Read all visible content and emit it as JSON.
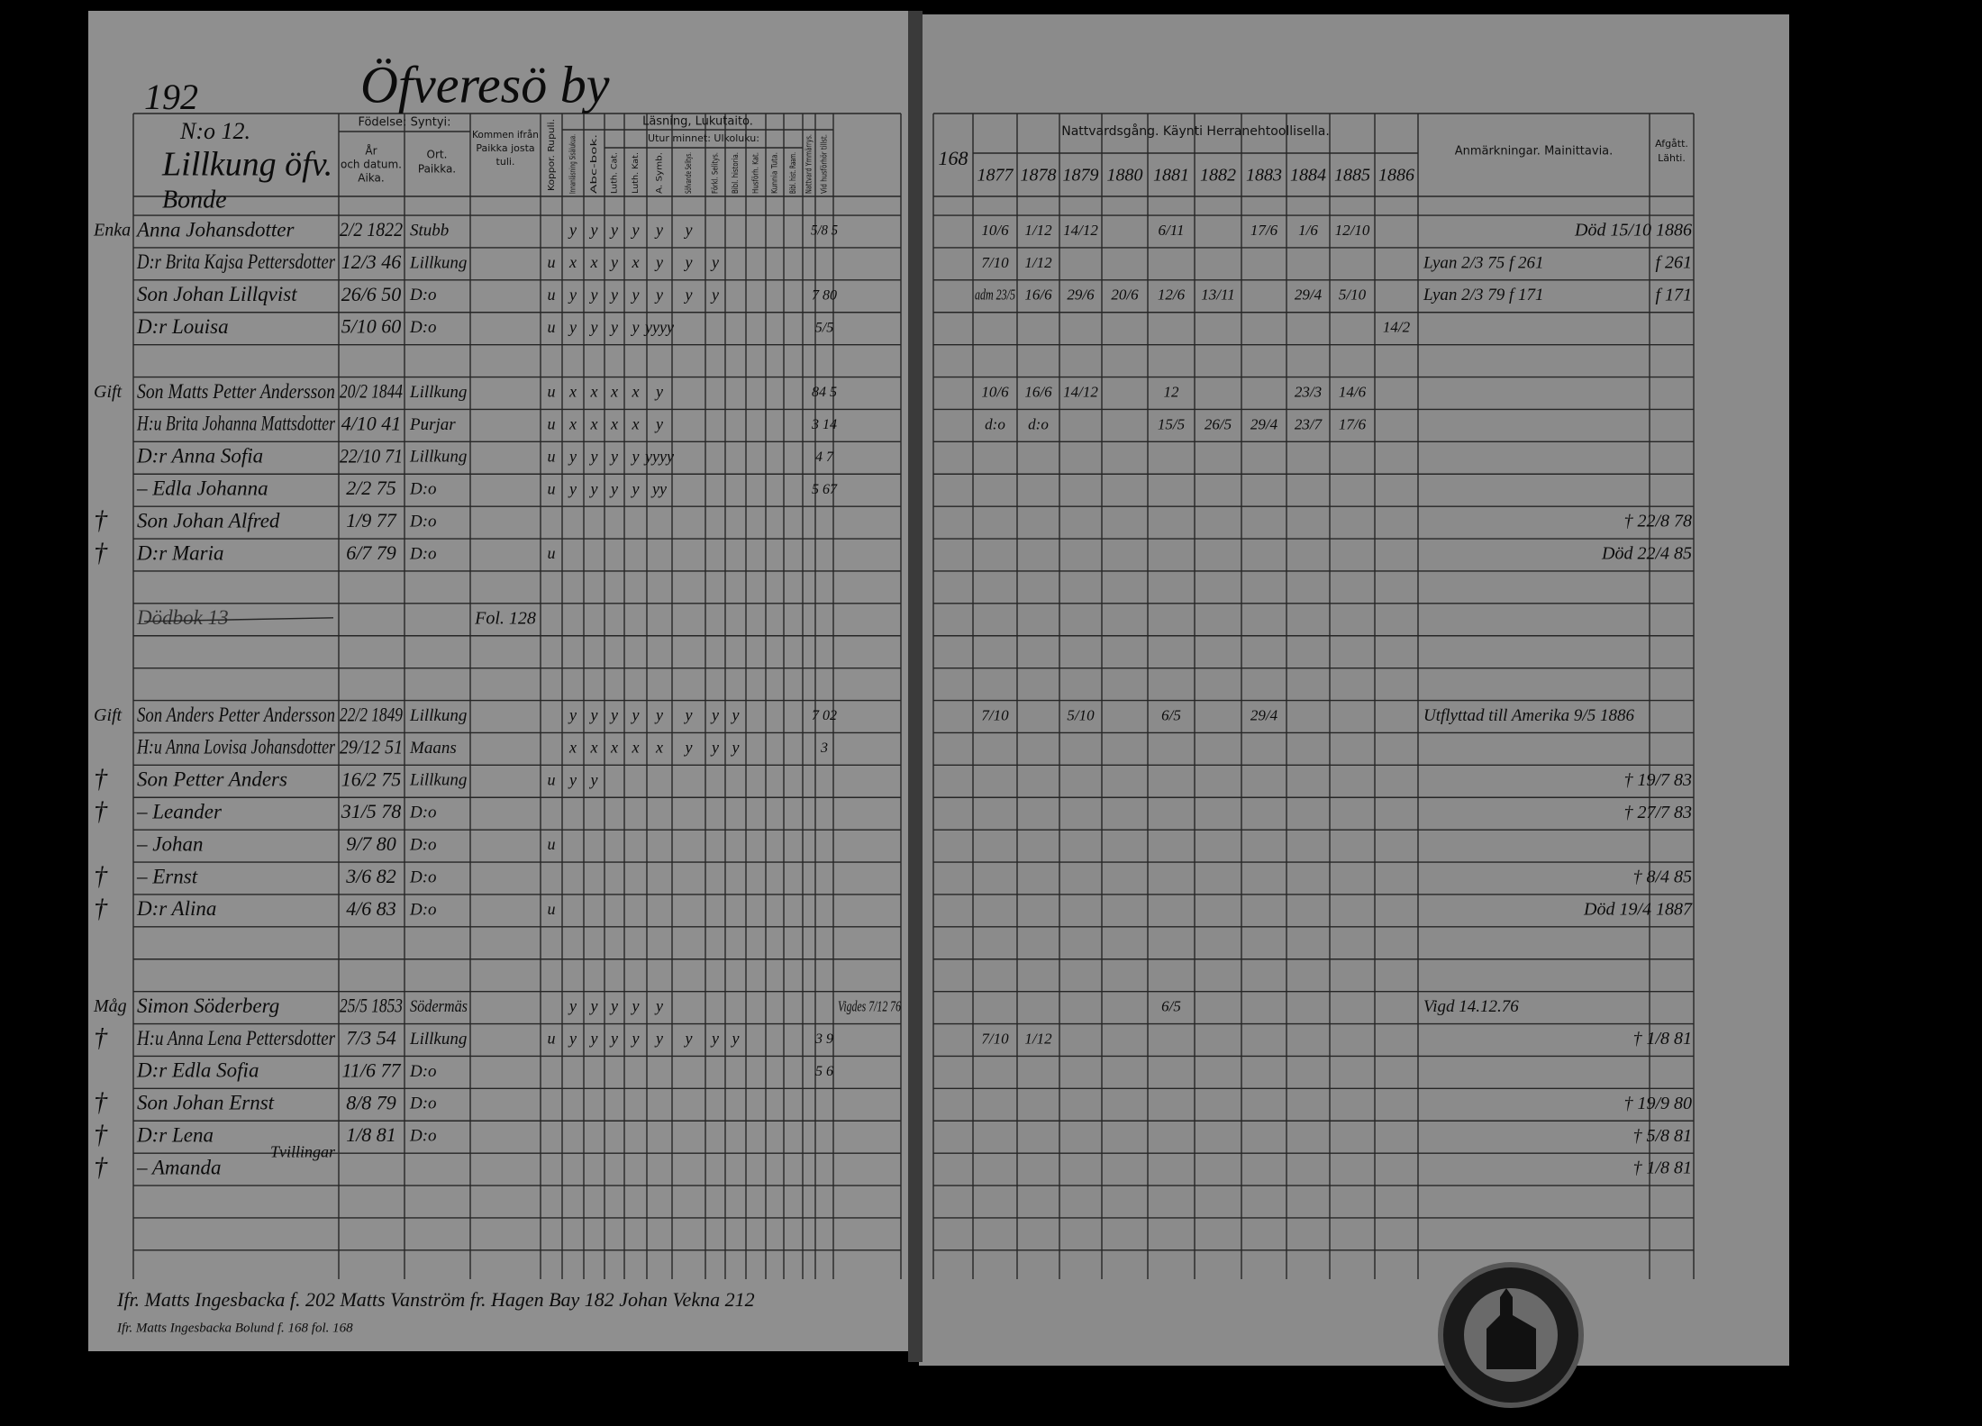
{
  "left_page": {
    "page_number": "192",
    "village": "Öfveresö by",
    "household_no": "N:o 12.",
    "farm": "Lillkung öfv.",
    "status": "Bonde",
    "headers": {
      "birth": "Födelse: Syntyi:",
      "date": [
        "År",
        "och datum.",
        "Aika."
      ],
      "place": [
        "Ort.",
        "Paikka."
      ],
      "from": [
        "Kommen ifrån",
        "Paikka josta",
        "tuli."
      ],
      "pox": "Koppor. Rupuli.",
      "reading": "Läsning, Lukutaito.",
      "memory": "Utur minnet: Ulkoluku:",
      "columns": [
        "Innanläsning Sisälukua.",
        "Abc-bok.",
        "Luth. Cat.",
        "Luth. Kat.",
        "A. Symb.",
        "Söfvande Selitys.",
        "Förkl. Selitys.",
        "Bibl. historia.",
        "Husförh. Kat.",
        "Kunnia Tuta.",
        "Bibl. hist. Raam.",
        "Nattvard Ymmärrys.",
        "Vid husförhör tillst."
      ]
    },
    "rows": [
      {
        "margin": "Enka",
        "name": "Anna Johansdotter",
        "date": "2/2 1822",
        "place": "Stubb",
        "reading": [
          "y",
          "y",
          "y",
          "y",
          "y",
          "y"
        ],
        "exam": "5/8 5",
        "communion": [
          "10/6",
          "1/12",
          "14/12",
          null,
          "6/11",
          null,
          "17/6",
          "1/6",
          "12/10",
          null
        ],
        "departed": "Död 15/10 1886"
      },
      {
        "name": "D:r Brita Kajsa Pettersdotter",
        "date": "12/3 46",
        "place": "Lillkung",
        "pox": "u",
        "reading": [
          "x",
          "x",
          "y",
          "x",
          "y",
          "y",
          "y"
        ],
        "communion": [
          "7/10",
          "1/12"
        ],
        "remark": "Lyan 2/3 75 f 261",
        "departed": "f 261"
      },
      {
        "name": "Son Johan Lillqvist",
        "date": "26/6 50",
        "place": "D:o",
        "pox": "u",
        "reading": [
          "y",
          "y",
          "y",
          "y",
          "y",
          "y",
          "y"
        ],
        "exam": "7 80",
        "communion": [
          "adm 23/5",
          "16/6",
          "29/6",
          "20/6",
          "12/6",
          "13/11",
          null,
          "29/4",
          "5/10",
          null
        ],
        "remark": "Lyan 2/3 79 f 171",
        "departed": "f 171"
      },
      {
        "name": "D:r Louisa",
        "date": "5/10 60",
        "place": "D:o",
        "pox": "u",
        "reading": [
          "y",
          "y",
          "y",
          "y",
          "yyyy"
        ],
        "exam": "5/5",
        "communion": [
          null,
          null,
          null,
          null,
          null,
          null,
          null,
          null,
          null,
          "14/2"
        ]
      },
      {
        "margin": "Gift",
        "name": "Son Matts Petter Andersson",
        "date": "20/2 1844",
        "place": "Lillkung",
        "pox": "u",
        "reading": [
          "x",
          "x",
          "x",
          "x",
          "y"
        ],
        "exam": "84 5",
        "communion": [
          "10/6",
          "16/6",
          "14/12",
          null,
          "12",
          null,
          null,
          "23/3",
          "14/6",
          null
        ]
      },
      {
        "name": "H:u Brita Johanna Mattsdotter",
        "date": "4/10 41",
        "place": "Purjar",
        "pox": "u",
        "reading": [
          "x",
          "x",
          "x",
          "x",
          "y"
        ],
        "exam": "3 14",
        "communion": [
          "d:o",
          "d:o",
          null,
          null,
          "15/5",
          "26/5",
          "29/4",
          "23/7",
          "17/6",
          null
        ]
      },
      {
        "name": "D:r Anna Sofia",
        "date": "22/10 71",
        "place": "Lillkung",
        "pox": "u",
        "reading": [
          "y",
          "y",
          "y",
          "y",
          "yyyy"
        ],
        "exam": "4 7"
      },
      {
        "name": "– Edla Johanna",
        "date": "2/2 75",
        "place": "D:o",
        "pox": "u",
        "reading": [
          "y",
          "y",
          "y",
          "y",
          "yy"
        ],
        "exam": "5 67"
      },
      {
        "margin": "†",
        "name": "Son Johan Alfred",
        "date": "1/9 77",
        "place": "D:o",
        "departed": "† 22/8 78"
      },
      {
        "margin": "†",
        "name": "D:r Maria",
        "date": "6/7 79",
        "place": "D:o",
        "pox": "u",
        "departed": "Död 22/4 85"
      },
      {
        "name": "Dödbok 13",
        "from": "Fol. 128",
        "struck": true
      },
      {
        "margin": "Gift",
        "name": "Son Anders Petter Andersson",
        "date": "22/2 1849",
        "place": "Lillkung",
        "reading": [
          "y",
          "y",
          "y",
          "y",
          "y",
          "y",
          "y",
          "y"
        ],
        "exam": "7 02",
        "communion": [
          "7/10",
          null,
          "5/10",
          null,
          "6/5",
          null,
          "29/4"
        ],
        "remark": "Utflyttad till Amerika 9/5 1886"
      },
      {
        "name": "H:u Anna Lovisa Johansdotter",
        "date": "29/12 51",
        "place": "Maans",
        "reading": [
          "x",
          "x",
          "x",
          "x",
          "x",
          "y",
          "y",
          "y"
        ],
        "exam": "3"
      },
      {
        "margin": "†",
        "name": "Son Petter Anders",
        "date": "16/2 75",
        "place": "Lillkung",
        "pox": "u",
        "reading": [
          "y",
          "y"
        ],
        "departed": "† 19/7 83"
      },
      {
        "margin": "†",
        "name": "– Leander",
        "date": "31/5 78",
        "place": "D:o",
        "departed": "† 27/7 83"
      },
      {
        "name": "– Johan",
        "date": "9/7 80",
        "place": "D:o",
        "pox": "u"
      },
      {
        "margin": "†",
        "name": "– Ernst",
        "date": "3/6 82",
        "place": "D:o",
        "departed": "† 8/4 85"
      },
      {
        "margin": "†",
        "name": "D:r Alina",
        "date": "4/6 83",
        "place": "D:o",
        "pox": "u",
        "departed": "Död 19/4 1887"
      },
      {
        "margin": "Måg",
        "name": "Simon Söderberg",
        "date": "25/5 1853",
        "place": "Södermäs",
        "reading": [
          "y",
          "y",
          "y",
          "y",
          "y"
        ],
        "note": "Vigdes 7/12 76",
        "communion": [
          null,
          null,
          null,
          null,
          "6/5"
        ],
        "remark": "Vigd 14.12.76"
      },
      {
        "margin": "†",
        "name": "H:u Anna Lena Pettersdotter",
        "date": "7/3 54",
        "place": "Lillkung",
        "pox": "u",
        "reading": [
          "y",
          "y",
          "y",
          "y",
          "y",
          "y",
          "y",
          "y"
        ],
        "exam": "3 9",
        "communion": [
          "7/10",
          "1/12"
        ],
        "departed": "† 1/8 81"
      },
      {
        "name": "D:r Edla Sofia",
        "date": "11/6 77",
        "place": "D:o",
        "exam": "5 6"
      },
      {
        "margin": "†",
        "name": "Son Johan Ernst",
        "date": "8/8 79",
        "place": "D:o",
        "departed": "† 19/9 80"
      },
      {
        "margin": "†",
        "name": "D:r Lena",
        "date": "1/8 81",
        "place": "D:o",
        "twins": "Tvillingar",
        "departed": "† 5/8 81"
      },
      {
        "margin": "†",
        "name": "– Amanda",
        "departed": "† 1/8 81"
      }
    ],
    "footer": [
      "Ifr. Matts Ingesbacka f. 202   Matts Vanström fr. Hagen Bay 182   Johan Vekna 212",
      "Ifr. Matts Ingesbacka Bolund f. 168 fol. 168"
    ]
  },
  "right_page": {
    "page_number": "168",
    "communion_header": "Nattvardsgång. Käynti Herranehtoollisella.",
    "years": [
      "1877",
      "1878",
      "1879",
      "1880",
      "1881",
      "1882",
      "1883",
      "1884",
      "1885",
      "1886"
    ],
    "remarks_header": "Anmärkningar. Mainittavia.",
    "departed_header": [
      "Afgått.",
      "Lähti."
    ]
  }
}
